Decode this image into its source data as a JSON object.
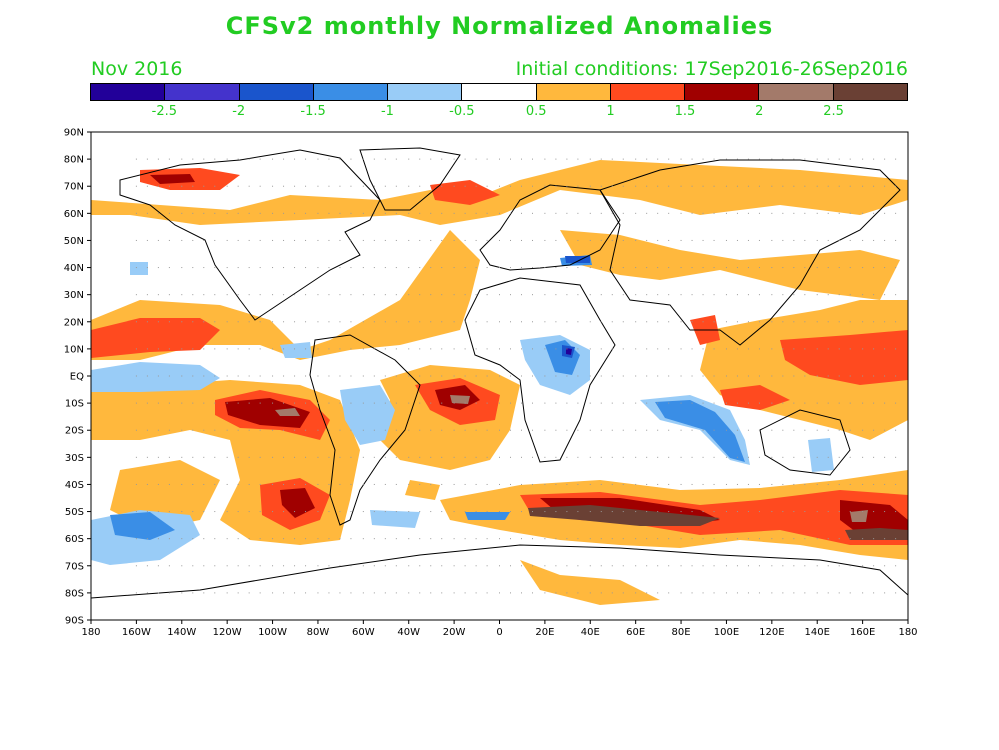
{
  "title": "CFSv2 monthly Normalized Anomalies",
  "month": "Nov 2016",
  "initial_conditions": "Initial conditions: 17Sep2016-26Sep2016",
  "colorbar": {
    "colors": [
      "#220099",
      "#4433cc",
      "#1a55cc",
      "#3a8ee6",
      "#99ccf7",
      "#ffffff",
      "#ffb83d",
      "#ff4a1f",
      "#a00000",
      "#a37a6a",
      "#6a4034"
    ],
    "labels": [
      "-2.5",
      "-2",
      "-1.5",
      "-1",
      "-0.5",
      "0.5",
      "1",
      "1.5",
      "2",
      "2.5"
    ]
  },
  "lat_labels": [
    "90N",
    "80N",
    "70N",
    "60N",
    "50N",
    "40N",
    "30N",
    "20N",
    "10N",
    "EQ",
    "10S",
    "20S",
    "30S",
    "40S",
    "50S",
    "60S",
    "70S",
    "80S",
    "90S"
  ],
  "lon_labels": [
    "180",
    "160W",
    "140W",
    "120W",
    "100W",
    "80W",
    "60W",
    "40W",
    "20W",
    "0",
    "20E",
    "40E",
    "60E",
    "80E",
    "100E",
    "120E",
    "140E",
    "160E",
    "180"
  ],
  "anomaly_classes": {
    "warm1": "#ffb83d",
    "warm2": "#ff4a1f",
    "warm3": "#a00000",
    "warm4": "#a37a6a",
    "warm5": "#6a4034",
    "cool1": "#99ccf7",
    "cool2": "#3a8ee6",
    "cool3": "#1a55cc",
    "cool4": "#220099"
  }
}
